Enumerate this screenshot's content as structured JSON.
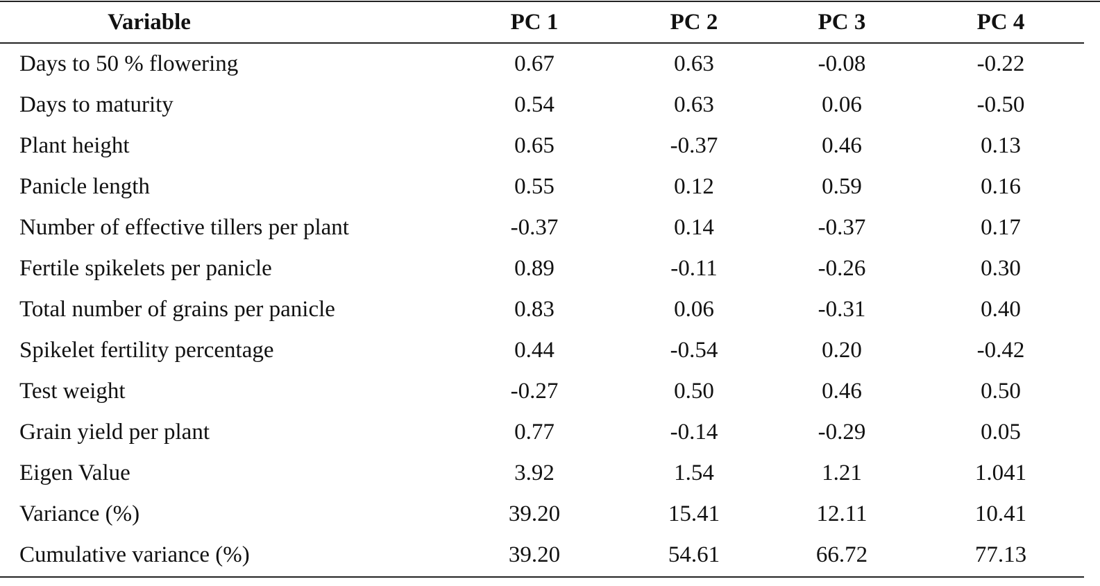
{
  "table": {
    "header": [
      "Variable",
      "PC 1",
      "PC 2",
      "PC 3",
      "PC 4"
    ],
    "rows": [
      [
        "Days to 50 % flowering",
        "0.67",
        "0.63",
        "-0.08",
        "-0.22"
      ],
      [
        "Days to maturity",
        "0.54",
        "0.63",
        "0.06",
        "-0.50"
      ],
      [
        "Plant height",
        "0.65",
        "-0.37",
        "0.46",
        "0.13"
      ],
      [
        "Panicle length",
        "0.55",
        "0.12",
        "0.59",
        "0.16"
      ],
      [
        "Number of effective tillers per plant",
        "-0.37",
        "0.14",
        "-0.37",
        "0.17"
      ],
      [
        "Fertile spikelets per panicle",
        "0.89",
        "-0.11",
        "-0.26",
        "0.30"
      ],
      [
        "Total number of grains per panicle",
        "0.83",
        "0.06",
        "-0.31",
        "0.40"
      ],
      [
        "Spikelet fertility percentage",
        "0.44",
        "-0.54",
        "0.20",
        "-0.42"
      ],
      [
        "Test weight",
        "-0.27",
        "0.50",
        "0.46",
        "0.50"
      ],
      [
        "Grain yield per plant",
        "0.77",
        "-0.14",
        "-0.29",
        "0.05"
      ],
      [
        "Eigen Value",
        "3.92",
        "1.54",
        "1.21",
        "1.041"
      ],
      [
        "Variance (%)",
        "39.20",
        "15.41",
        "12.11",
        "10.41"
      ],
      [
        "Cumulative variance (%)",
        "39.20",
        "54.61",
        "66.72",
        "77.13"
      ]
    ]
  }
}
